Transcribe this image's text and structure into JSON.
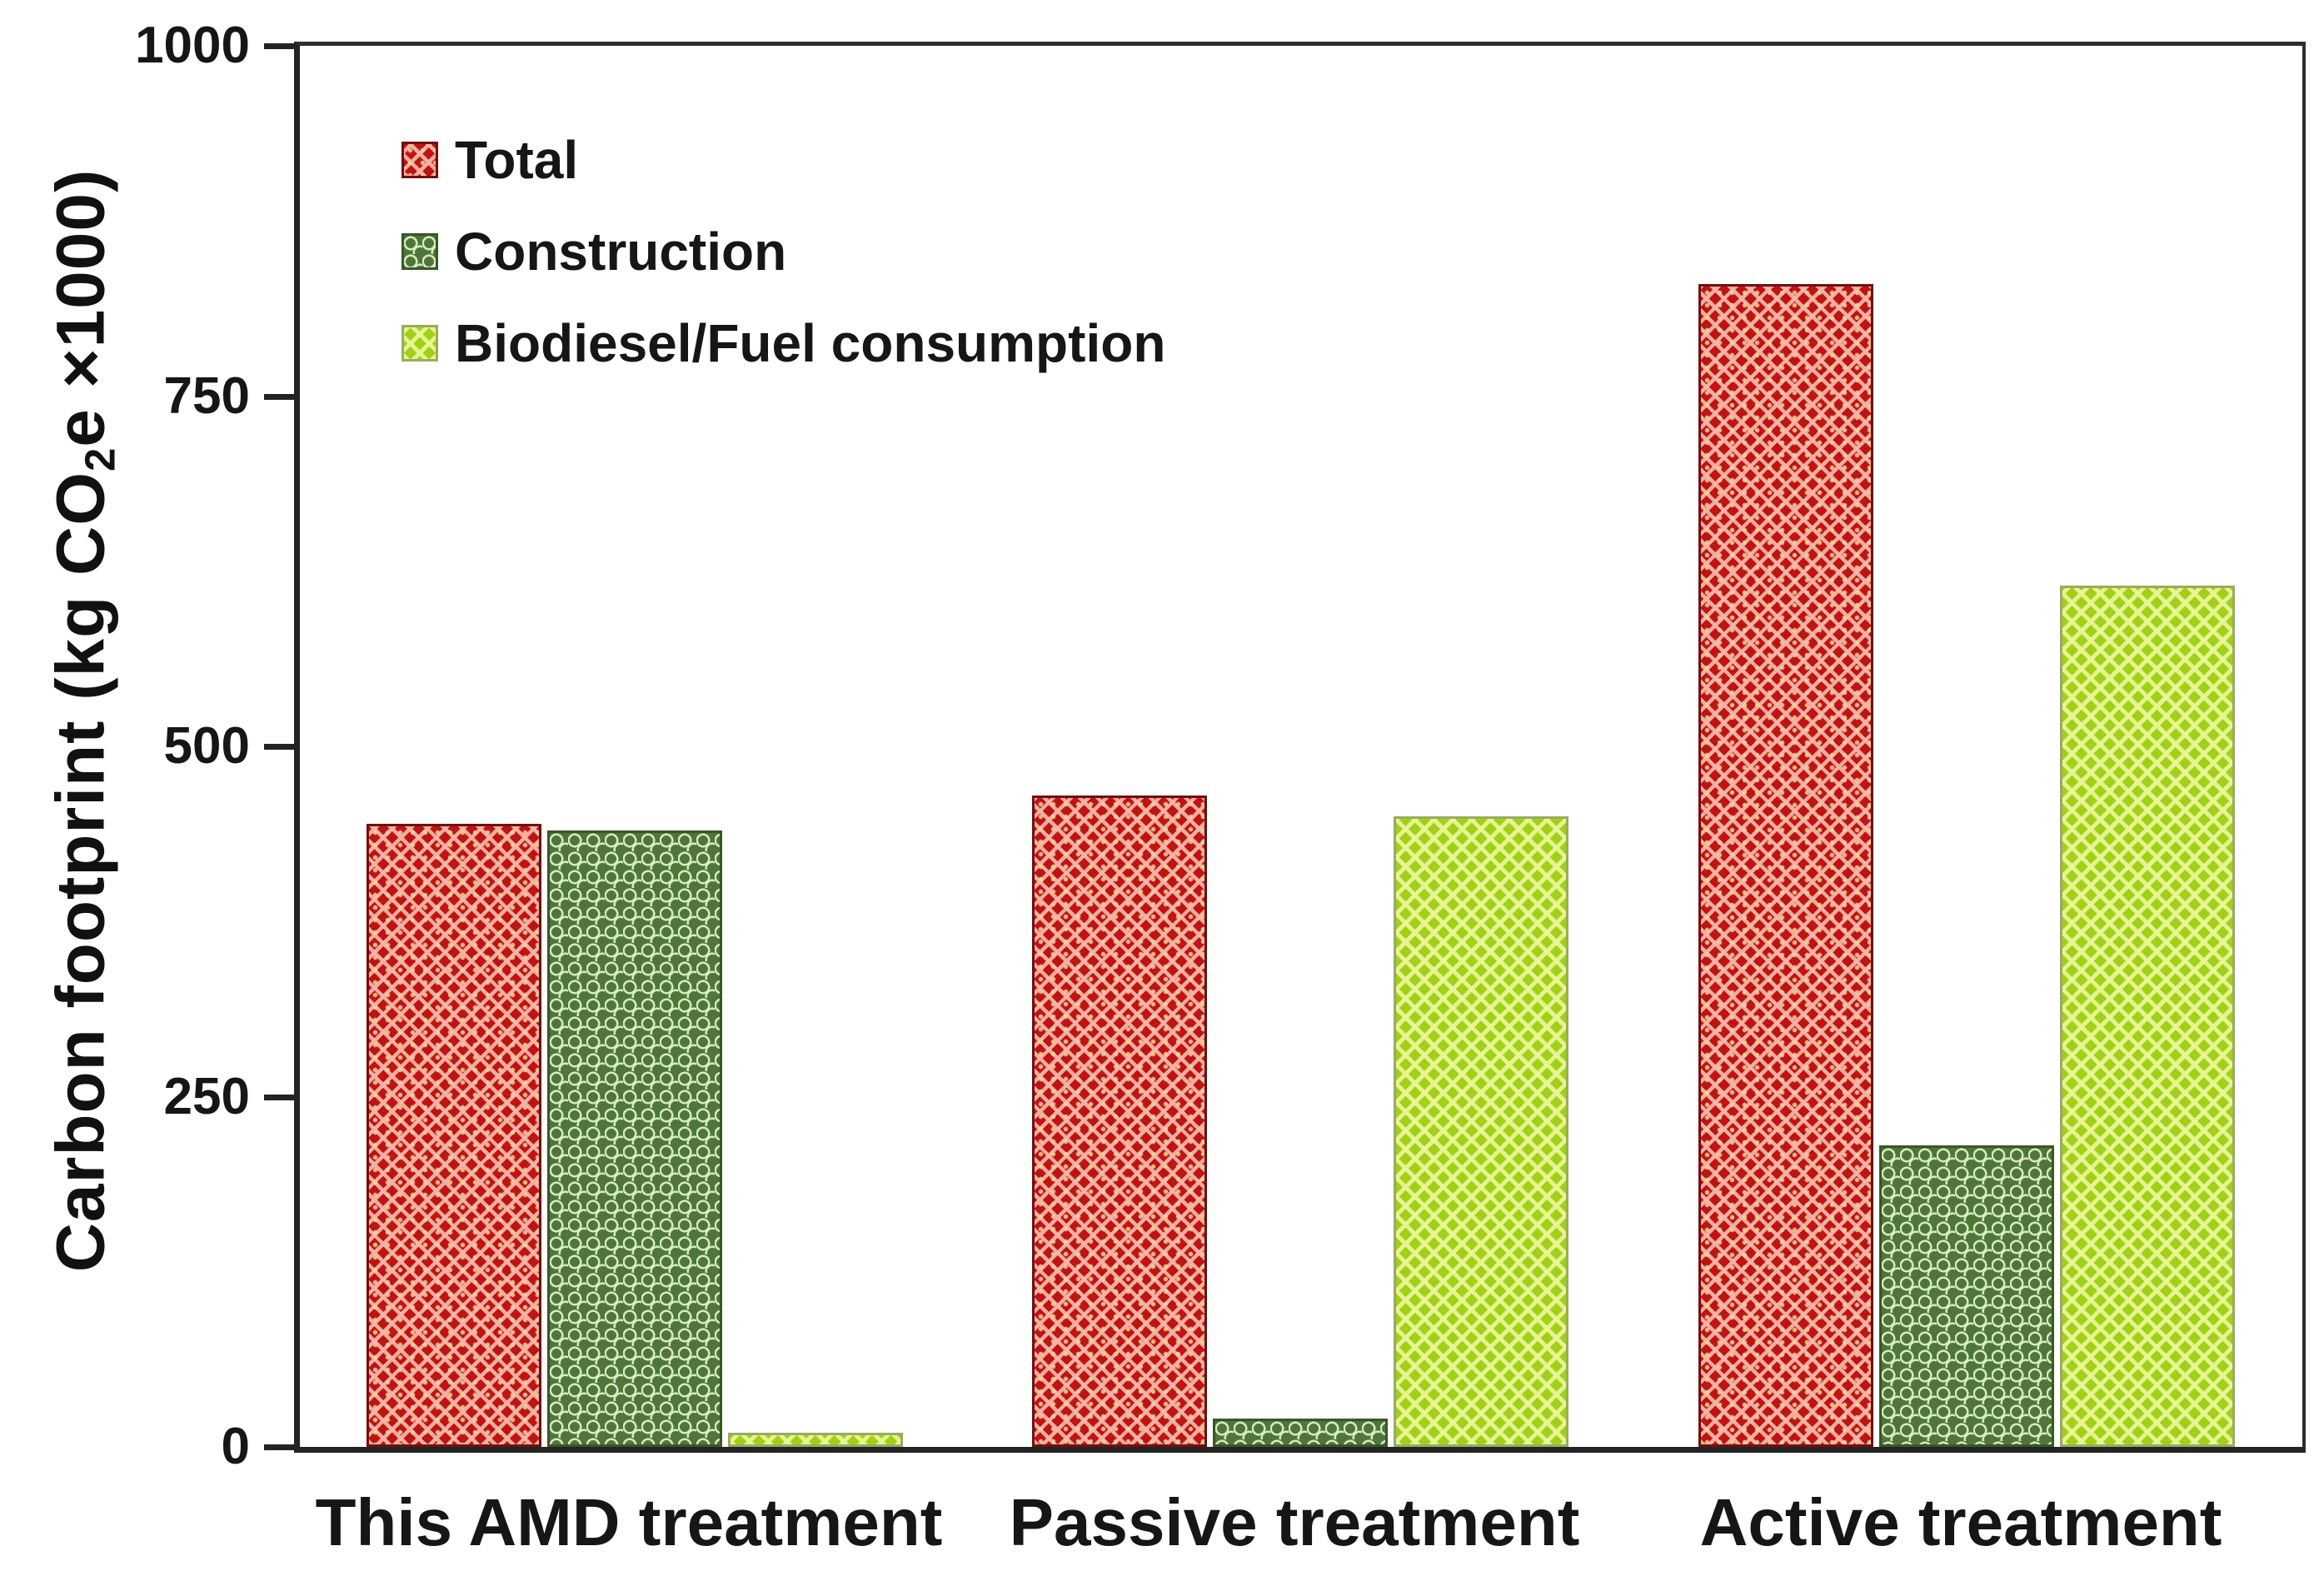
{
  "chart_data": {
    "type": "bar",
    "title": "",
    "ylabel": {
      "prefix": "Carbon footprint (kg CO",
      "sub": "2",
      "suffix": "e ×1000)"
    },
    "categories": [
      "This AMD treatment",
      "Passive treatment",
      "Active treatment"
    ],
    "series": [
      {
        "name": "Total",
        "color": "#bf1414",
        "pattern": "diamond-crosshatch",
        "values": [
          445,
          465,
          830
        ]
      },
      {
        "name": "Construction",
        "color": "#507539",
        "pattern": "scale-wave",
        "values": [
          440,
          20,
          215
        ]
      },
      {
        "name": "Biodiesel/Fuel consumption",
        "color": "#a2d019",
        "pattern": "diagonal-lattice",
        "values": [
          10,
          450,
          615
        ]
      }
    ],
    "ylim": [
      0,
      1000
    ],
    "yticks": [
      0,
      250,
      500,
      750,
      1000
    ],
    "legend_position": "top-left",
    "grid": false,
    "frame": true
  }
}
